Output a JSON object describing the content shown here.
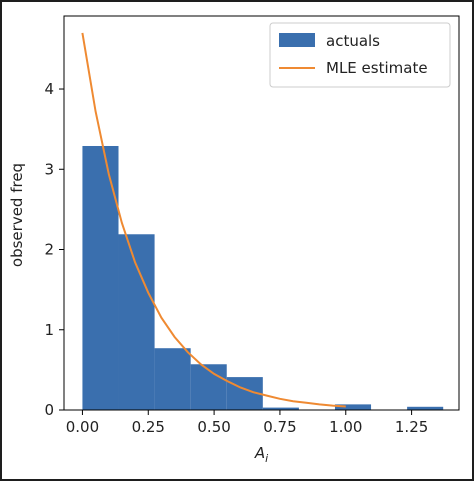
{
  "chart_data": {
    "type": "histogram",
    "title": "",
    "xlabel": "A",
    "xlabel_subscript": "i",
    "ylabel": "observed freq",
    "xlim": [
      -0.07,
      1.43
    ],
    "ylim": [
      0,
      4.91
    ],
    "xticks": [
      0.0,
      0.25,
      0.5,
      0.75,
      1.0,
      1.25
    ],
    "xtick_labels": [
      "0.00",
      "0.25",
      "0.50",
      "0.75",
      "1.00",
      "1.25"
    ],
    "yticks": [
      0,
      1,
      2,
      3,
      4
    ],
    "ytick_labels": [
      "0",
      "1",
      "2",
      "3",
      "4"
    ],
    "grid": false,
    "legend_position": "top-right",
    "series": [
      {
        "name": "actuals",
        "kind": "bars",
        "color": "#3a6fae",
        "bins": [
          {
            "x0": 0.0,
            "x1": 0.137,
            "value": 3.29
          },
          {
            "x0": 0.137,
            "x1": 0.274,
            "value": 2.19
          },
          {
            "x0": 0.274,
            "x1": 0.411,
            "value": 0.77
          },
          {
            "x0": 0.411,
            "x1": 0.548,
            "value": 0.57
          },
          {
            "x0": 0.548,
            "x1": 0.685,
            "value": 0.41
          },
          {
            "x0": 0.685,
            "x1": 0.822,
            "value": 0.03
          },
          {
            "x0": 0.822,
            "x1": 0.959,
            "value": 0.0
          },
          {
            "x0": 0.959,
            "x1": 1.096,
            "value": 0.07
          },
          {
            "x0": 1.096,
            "x1": 1.233,
            "value": 0.0
          },
          {
            "x0": 1.233,
            "x1": 1.37,
            "value": 0.04
          }
        ]
      },
      {
        "name": "MLE estimate",
        "kind": "line",
        "color": "#ef8a32",
        "x": [
          0.0,
          0.05,
          0.1,
          0.15,
          0.2,
          0.25,
          0.3,
          0.35,
          0.4,
          0.45,
          0.5,
          0.55,
          0.6,
          0.65,
          0.7,
          0.75,
          0.8,
          0.85,
          0.9,
          0.95,
          1.0
        ],
        "y": [
          4.7,
          3.72,
          2.94,
          2.33,
          1.84,
          1.46,
          1.15,
          0.91,
          0.72,
          0.57,
          0.45,
          0.36,
          0.28,
          0.22,
          0.18,
          0.14,
          0.11,
          0.09,
          0.07,
          0.055,
          0.044
        ]
      }
    ]
  }
}
